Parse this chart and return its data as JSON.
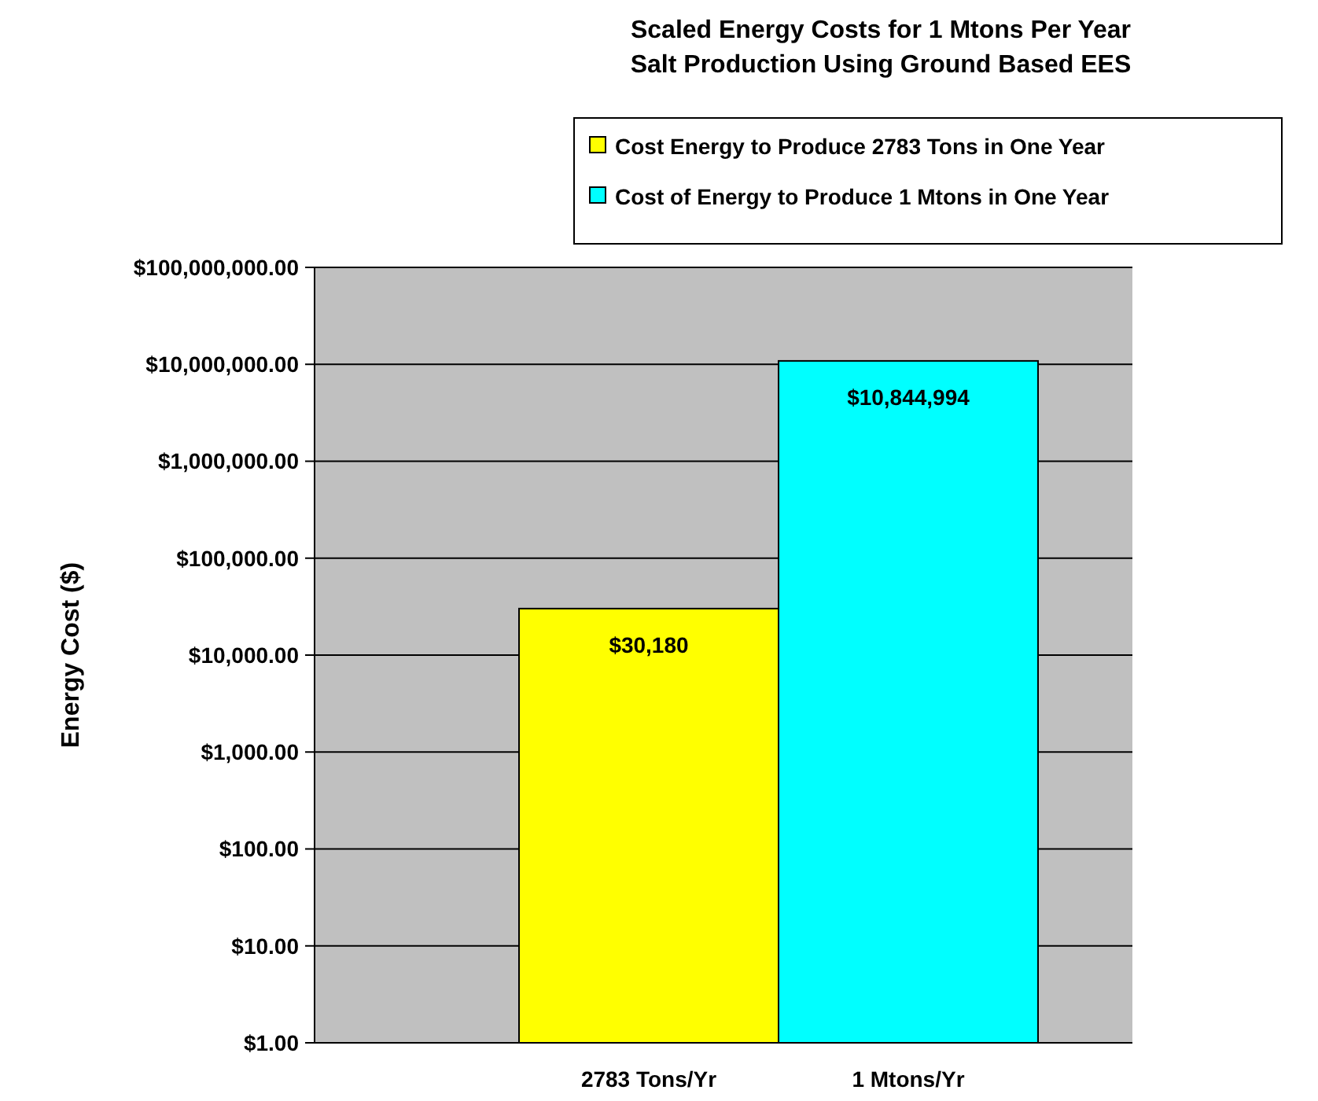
{
  "chart_data": {
    "type": "bar",
    "title": "Scaled Energy Costs for 1 Mtons Per Year\nSalt Production Using Ground Based EES",
    "ylabel": "Energy Cost ($)",
    "categories": [
      "2783 Tons/Yr",
      "1 Mtons/Yr"
    ],
    "series": [
      {
        "name": "Cost Energy to Produce 2783 Tons in One Year",
        "color": "#ffff00",
        "values": [
          30180,
          null
        ],
        "value_labels": [
          "$30,180",
          null
        ]
      },
      {
        "name": "Cost of Energy to Produce 1 Mtons in One Year",
        "color": "#00ffff",
        "values": [
          null,
          10844994
        ],
        "value_labels": [
          null,
          "$10,844,994"
        ]
      }
    ],
    "log": true,
    "ylim": [
      1,
      100000000
    ],
    "yticks": [
      {
        "value": 1,
        "label": "$1.00"
      },
      {
        "value": 10,
        "label": "$10.00"
      },
      {
        "value": 100,
        "label": "$100.00"
      },
      {
        "value": 1000,
        "label": "$1,000.00"
      },
      {
        "value": 10000,
        "label": "$10,000.00"
      },
      {
        "value": 100000,
        "label": "$100,000.00"
      },
      {
        "value": 1000000,
        "label": "$1,000,000.00"
      },
      {
        "value": 10000000,
        "label": "$10,000,000.00"
      },
      {
        "value": 100000000,
        "label": "$100,000,000.00"
      }
    ],
    "grid": "y",
    "legend": "top right"
  }
}
